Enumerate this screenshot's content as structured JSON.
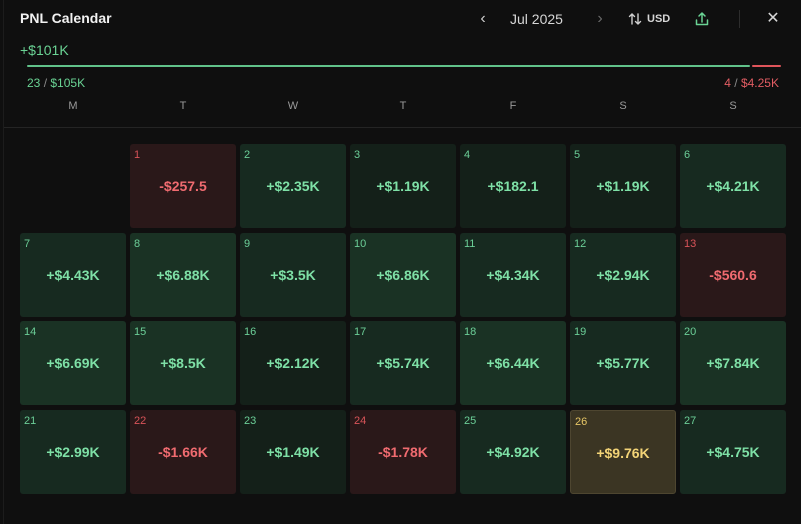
{
  "header": {
    "title": "PNL Calendar",
    "month": "Jul 2025",
    "currency": "USD",
    "icons": {
      "prev": "chevron-left-icon",
      "next": "chevron-right-icon",
      "currency": "sort-arrows-icon",
      "share": "share-icon",
      "close": "close-icon"
    }
  },
  "summary": {
    "total": "+$101K",
    "wins_count": "23",
    "wins_amount": "$105K",
    "losses_count": "4",
    "losses_amount": "$4.25K",
    "win_fraction": 0.961,
    "colors": {
      "positive": "#6ad394",
      "negative": "#e25d63",
      "best": "#f3d477"
    }
  },
  "weekdays": [
    "M",
    "T",
    "W",
    "T",
    "F",
    "S",
    "S"
  ],
  "days": [
    {
      "day": "1",
      "pnl": "-$257.5",
      "kind": "neg"
    },
    {
      "day": "2",
      "pnl": "+$2.35K",
      "kind": "s2"
    },
    {
      "day": "3",
      "pnl": "+$1.19K",
      "kind": "s1"
    },
    {
      "day": "4",
      "pnl": "+$182.1",
      "kind": "s1"
    },
    {
      "day": "5",
      "pnl": "+$1.19K",
      "kind": "s1"
    },
    {
      "day": "6",
      "pnl": "+$4.21K",
      "kind": "s2"
    },
    {
      "day": "7",
      "pnl": "+$4.43K",
      "kind": "s2"
    },
    {
      "day": "8",
      "pnl": "+$6.88K",
      "kind": "s3"
    },
    {
      "day": "9",
      "pnl": "+$3.5K",
      "kind": "s2"
    },
    {
      "day": "10",
      "pnl": "+$6.86K",
      "kind": "s3"
    },
    {
      "day": "11",
      "pnl": "+$4.34K",
      "kind": "s2"
    },
    {
      "day": "12",
      "pnl": "+$2.94K",
      "kind": "s2"
    },
    {
      "day": "13",
      "pnl": "-$560.6",
      "kind": "neg"
    },
    {
      "day": "14",
      "pnl": "+$6.69K",
      "kind": "s3"
    },
    {
      "day": "15",
      "pnl": "+$8.5K",
      "kind": "s3"
    },
    {
      "day": "16",
      "pnl": "+$2.12K",
      "kind": "s1"
    },
    {
      "day": "17",
      "pnl": "+$5.74K",
      "kind": "s2"
    },
    {
      "day": "18",
      "pnl": "+$6.44K",
      "kind": "s3"
    },
    {
      "day": "19",
      "pnl": "+$5.77K",
      "kind": "s2"
    },
    {
      "day": "20",
      "pnl": "+$7.84K",
      "kind": "s3"
    },
    {
      "day": "21",
      "pnl": "+$2.99K",
      "kind": "s2"
    },
    {
      "day": "22",
      "pnl": "-$1.66K",
      "kind": "neg"
    },
    {
      "day": "23",
      "pnl": "+$1.49K",
      "kind": "s1"
    },
    {
      "day": "24",
      "pnl": "-$1.78K",
      "kind": "neg"
    },
    {
      "day": "25",
      "pnl": "+$4.92K",
      "kind": "s2"
    },
    {
      "day": "26",
      "pnl": "+$9.76K",
      "kind": "best"
    },
    {
      "day": "27",
      "pnl": "+$4.75K",
      "kind": "s2"
    }
  ]
}
